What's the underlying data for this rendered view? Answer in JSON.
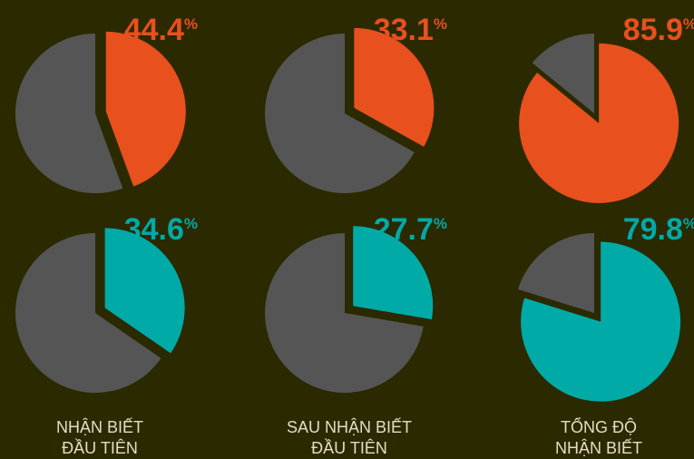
{
  "chart_data": [
    {
      "type": "pie",
      "values": [
        44.4
      ],
      "unit": "%",
      "color": "#e8501e",
      "rest_color": "#555555"
    },
    {
      "type": "pie",
      "values": [
        33.1
      ],
      "unit": "%",
      "color": "#e8501e",
      "rest_color": "#555555"
    },
    {
      "type": "pie",
      "values": [
        85.9
      ],
      "unit": "%",
      "color": "#e8501e",
      "rest_color": "#555555"
    },
    {
      "type": "pie",
      "values": [
        34.6
      ],
      "unit": "%",
      "color": "#00aaa6",
      "rest_color": "#555555"
    },
    {
      "type": "pie",
      "values": [
        27.7
      ],
      "unit": "%",
      "color": "#00aaa6",
      "rest_color": "#555555"
    },
    {
      "type": "pie",
      "values": [
        79.8
      ],
      "unit": "%",
      "color": "#00aaa6",
      "rest_color": "#555555"
    }
  ],
  "column_labels": [
    [
      "NHẬN BIẾT",
      "ĐẦU TIÊN"
    ],
    [
      "SAU NHẬN BIẾT",
      "ĐẦU TIÊN"
    ],
    [
      "TỔNG ĐỘ",
      "NHẬN BIẾT"
    ]
  ]
}
